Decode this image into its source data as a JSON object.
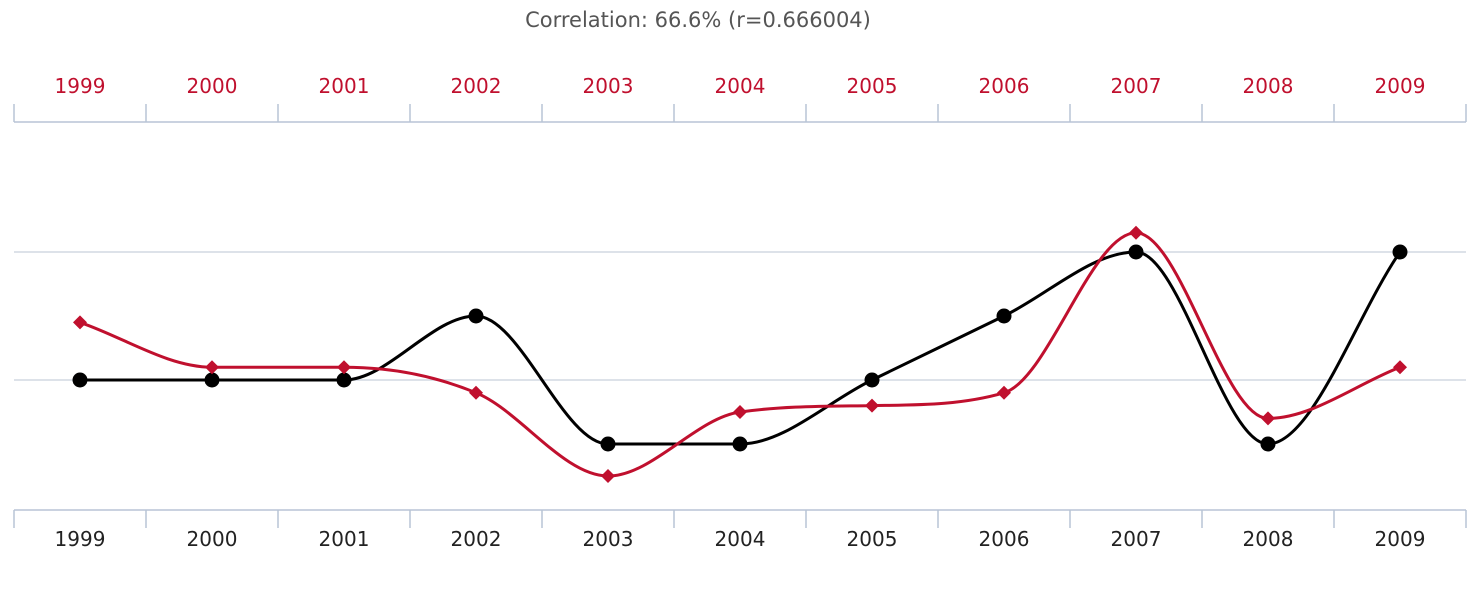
{
  "chart_data": {
    "type": "line",
    "title": "Correlation: 66.6% (r=0.666004)",
    "xlabel": "",
    "ylabel": "",
    "categories": [
      "1999",
      "2000",
      "2001",
      "2002",
      "2003",
      "2004",
      "2005",
      "2006",
      "2007",
      "2008",
      "2009"
    ],
    "top_axis_color": "#c0102e",
    "grid": true,
    "y_gridlines": [
      0,
      1
    ],
    "series": [
      {
        "color": "#000000",
        "marker": "circle",
        "values": [
          0,
          0,
          0,
          0.5,
          -0.5,
          -0.5,
          0,
          0.5,
          1.0,
          -0.5,
          1.0
        ]
      },
      {
        "color": "#c0102e",
        "marker": "diamond",
        "values": [
          0.45,
          0.1,
          0.1,
          -0.1,
          -0.75,
          -0.25,
          -0.2,
          -0.1,
          1.15,
          -0.3,
          0.1
        ]
      }
    ],
    "ylim": [
      -1.0,
      2.0
    ]
  }
}
